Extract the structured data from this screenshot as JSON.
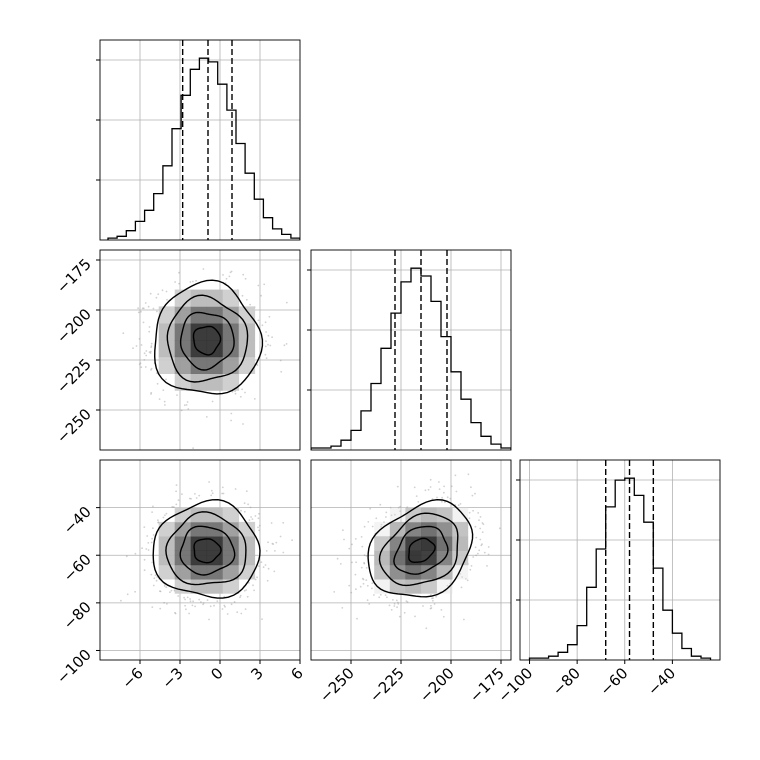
{
  "chart_data": {
    "type": "corner",
    "title": "",
    "parameters": [
      {
        "index": 0,
        "xlim": [
          -9,
          6
        ],
        "quantiles": [
          -2.8,
          -0.9,
          0.9
        ],
        "ticks": [
          -6,
          -3,
          0,
          3,
          6
        ],
        "tick_labels": [
          "−6",
          "−3",
          "0",
          "3",
          "6"
        ],
        "hist_bins": [
          -8.4,
          6.0
        ],
        "hist_counts": [
          1,
          2,
          5,
          10,
          16,
          25,
          40,
          60,
          78,
          92,
          98,
          96,
          84,
          70,
          52,
          36,
          22,
          12,
          6,
          3,
          1
        ]
      },
      {
        "index": 1,
        "xlim": [
          -270,
          -170
        ],
        "quantiles": [
          -228,
          -215,
          -202
        ],
        "ticks": [
          -250,
          -225,
          -200,
          -175
        ],
        "tick_labels": [
          "−250",
          "−225",
          "−200",
          "−175"
        ],
        "hist_bins": [
          -270,
          -170
        ],
        "hist_counts": [
          1,
          1,
          2,
          5,
          10,
          20,
          34,
          52,
          70,
          86,
          93,
          89,
          76,
          58,
          40,
          26,
          14,
          7,
          3,
          1
        ]
      },
      {
        "index": 2,
        "xlim": [
          -104,
          -20
        ],
        "quantiles": [
          -68,
          -58,
          -48
        ],
        "ticks": [
          -100,
          -80,
          -60,
          -40
        ],
        "tick_labels": [
          "−100",
          "−80",
          "−60",
          "−40"
        ],
        "hist_bins": [
          -100,
          -24
        ],
        "hist_counts": [
          1,
          1,
          2,
          4,
          8,
          18,
          38,
          58,
          80,
          94,
          95,
          86,
          72,
          48,
          26,
          14,
          6,
          2,
          1
        ]
      }
    ],
    "joint": [
      {
        "x_param": 0,
        "y_param": 1,
        "ylim": [
          -270,
          -170
        ],
        "y_ticks": [
          -250,
          -225,
          -200,
          -175
        ],
        "y_tick_labels": [
          "−250",
          "−225",
          "−200",
          "−175"
        ],
        "center": [
          -1.0,
          -215
        ],
        "sd": [
          2.0,
          14.0
        ],
        "rho": 0.0
      },
      {
        "x_param": 0,
        "y_param": 2,
        "ylim": [
          -104,
          -20
        ],
        "y_ticks": [
          -100,
          -80,
          -60,
          -40
        ],
        "y_tick_labels": [
          "−100",
          "−80",
          "−60",
          "−40"
        ],
        "center": [
          -1.0,
          -58
        ],
        "sd": [
          2.0,
          10.0
        ],
        "rho": 0.0
      },
      {
        "x_param": 1,
        "y_param": 2,
        "ylim": [
          -104,
          -20
        ],
        "y_ticks": [
          -100,
          -80,
          -60,
          -40
        ],
        "y_tick_labels": [
          "−100",
          "−80",
          "−60",
          "−40"
        ],
        "center": [
          -215,
          -58
        ],
        "sd": [
          13.0,
          10.0
        ],
        "rho": 0.25
      }
    ],
    "contour_levels": [
      0.5,
      1.0,
      1.5,
      2.0
    ],
    "grid": true,
    "colors": {
      "line": "#000000",
      "grid": "#b0b0b0",
      "scatter": "#9a9a9a",
      "background": "#ffffff"
    }
  }
}
